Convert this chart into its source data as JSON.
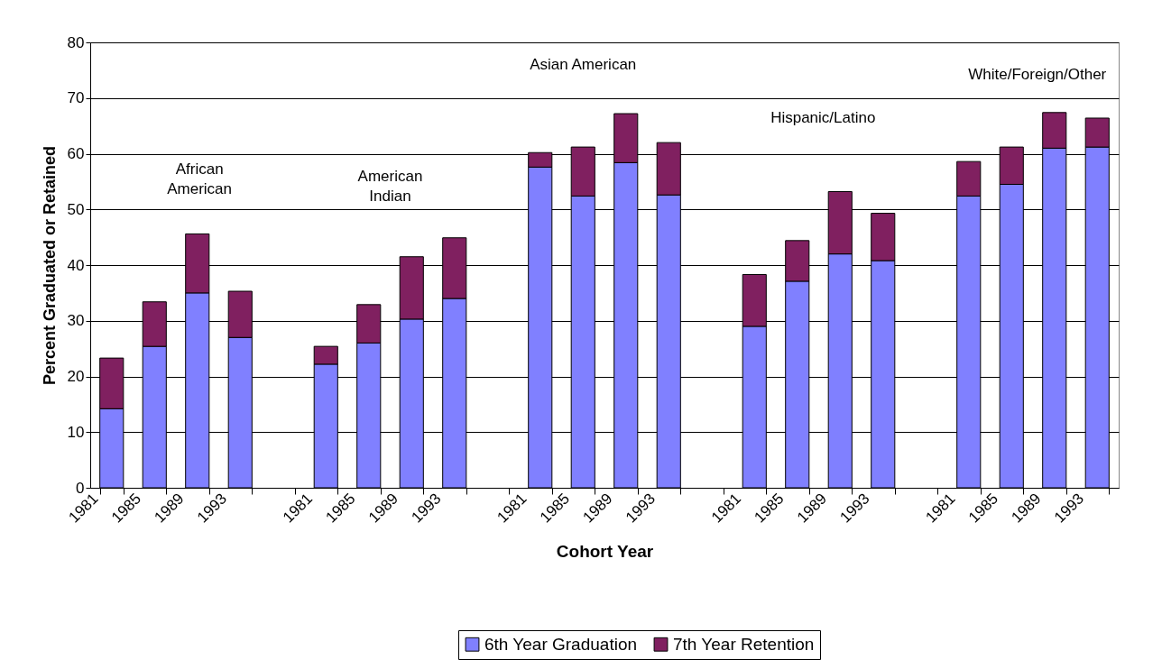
{
  "chart_data": {
    "type": "bar",
    "stacked": true,
    "xlabel": "Cohort Year",
    "ylabel": "Percent Graduated or Retained",
    "categories": [
      "1981",
      "1985",
      "1989",
      "1993",
      null,
      "1981",
      "1985",
      "1989",
      "1993",
      null,
      "1981",
      "1985",
      "1989",
      "1993",
      null,
      "1981",
      "1985",
      "1989",
      "1993",
      null,
      "1981",
      "1985",
      "1989",
      "1993"
    ],
    "series": [
      {
        "name": "6th Year Graduation",
        "color": "#8080ff",
        "values": [
          14.2,
          25.4,
          35.0,
          27.0,
          null,
          22.2,
          26.0,
          30.3,
          34.0,
          null,
          57.6,
          52.4,
          58.4,
          52.6,
          null,
          29.0,
          37.1,
          42.0,
          40.8,
          null,
          52.4,
          54.5,
          61.0,
          61.2
        ]
      },
      {
        "name": "7th Year Retention",
        "color": "#802060",
        "values": [
          9.1,
          8.0,
          10.6,
          8.3,
          null,
          3.2,
          6.9,
          11.2,
          10.9,
          null,
          2.6,
          8.8,
          8.8,
          9.4,
          null,
          9.3,
          7.3,
          11.2,
          8.5,
          null,
          6.2,
          6.7,
          6.4,
          5.2
        ]
      }
    ],
    "ylim": [
      0,
      80
    ],
    "yticks": [
      0,
      10,
      20,
      30,
      40,
      50,
      60,
      70,
      80
    ],
    "grid": "y",
    "legend": "bottom",
    "annotations": [
      "African American",
      "American Indian",
      "Asian American",
      "Hispanic/Latino",
      "White/Foreign/Other"
    ]
  }
}
